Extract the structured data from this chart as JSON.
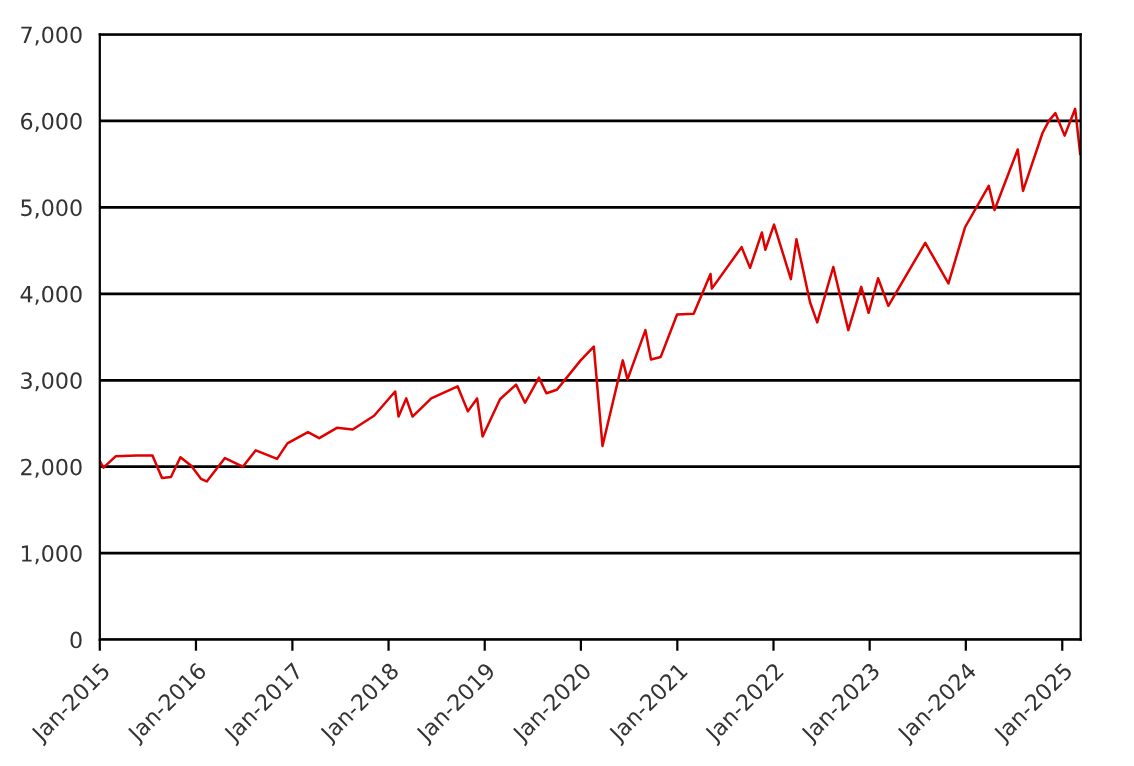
{
  "chart_data": {
    "type": "line",
    "line_style": "solid",
    "marker": "none",
    "grid": "y",
    "xlim": [
      "2015-01-01",
      "2025-03-12"
    ],
    "xticks": [
      {
        "value": "2015-01-01",
        "label": "Jan-2015"
      },
      {
        "value": "2016-01-01",
        "label": "Jan-2016"
      },
      {
        "value": "2017-01-01",
        "label": "Jan-2017"
      },
      {
        "value": "2018-01-01",
        "label": "Jan-2018"
      },
      {
        "value": "2019-01-01",
        "label": "Jan-2019"
      },
      {
        "value": "2020-01-01",
        "label": "Jan-2020"
      },
      {
        "value": "2021-01-01",
        "label": "Jan-2021"
      },
      {
        "value": "2022-01-01",
        "label": "Jan-2022"
      },
      {
        "value": "2023-01-01",
        "label": "Jan-2023"
      },
      {
        "value": "2024-01-01",
        "label": "Jan-2024"
      },
      {
        "value": "2025-01-01",
        "label": "Jan-2025"
      }
    ],
    "ylim": [
      0,
      7000
    ],
    "yticks": [
      {
        "value": 0,
        "label": "0"
      },
      {
        "value": 1000,
        "label": "1,000"
      },
      {
        "value": 2000,
        "label": "2,000"
      },
      {
        "value": 3000,
        "label": "3,000"
      },
      {
        "value": 4000,
        "label": "4,000"
      },
      {
        "value": 5000,
        "label": "5,000"
      },
      {
        "value": 6000,
        "label": "6,000"
      },
      {
        "value": 7000,
        "label": "7,000"
      }
    ],
    "series": [
      {
        "color": "#e00000",
        "x": [
          "2015-01-02",
          "2015-01-15",
          "2015-03-02",
          "2015-05-21",
          "2015-07-20",
          "2015-08-25",
          "2015-09-28",
          "2015-11-03",
          "2015-12-14",
          "2016-01-20",
          "2016-02-11",
          "2016-04-20",
          "2016-06-27",
          "2016-08-15",
          "2016-11-04",
          "2016-12-13",
          "2017-03-01",
          "2017-04-13",
          "2017-06-19",
          "2017-08-18",
          "2017-11-07",
          "2018-01-26",
          "2018-02-08",
          "2018-03-09",
          "2018-04-02",
          "2018-06-12",
          "2018-09-20",
          "2018-10-29",
          "2018-12-03",
          "2018-12-24",
          "2019-02-28",
          "2019-04-30",
          "2019-06-03",
          "2019-07-26",
          "2019-08-23",
          "2019-10-02",
          "2019-12-31",
          "2020-02-19",
          "2020-03-23",
          "2020-06-08",
          "2020-06-26",
          "2020-09-02",
          "2020-09-23",
          "2020-10-30",
          "2020-12-31",
          "2021-03-04",
          "2021-05-07",
          "2021-05-12",
          "2021-09-02",
          "2021-10-04",
          "2021-11-18",
          "2021-12-01",
          "2022-01-03",
          "2022-03-08",
          "2022-03-29",
          "2022-05-20",
          "2022-06-16",
          "2022-08-16",
          "2022-10-12",
          "2022-11-30",
          "2022-12-28",
          "2023-02-02",
          "2023-03-13",
          "2023-07-31",
          "2023-10-27",
          "2023-12-29",
          "2024-03-28",
          "2024-04-19",
          "2024-07-16",
          "2024-08-05",
          "2024-10-18",
          "2024-11-11",
          "2024-12-06",
          "2025-01-10",
          "2025-02-19",
          "2025-03-10"
        ],
        "values": [
          2060,
          1990,
          2120,
          2130,
          2130,
          1870,
          1880,
          2110,
          2010,
          1860,
          1830,
          2100,
          2000,
          2190,
          2090,
          2270,
          2400,
          2330,
          2450,
          2430,
          2590,
          2870,
          2580,
          2790,
          2580,
          2790,
          2930,
          2640,
          2790,
          2350,
          2780,
          2950,
          2740,
          3030,
          2850,
          2890,
          3230,
          3390,
          2240,
          3230,
          3010,
          3580,
          3240,
          3270,
          3760,
          3770,
          4230,
          4060,
          4540,
          4300,
          4710,
          4510,
          4800,
          4170,
          4630,
          3900,
          3670,
          4310,
          3580,
          4080,
          3780,
          4180,
          3860,
          4590,
          4120,
          4770,
          5250,
          4970,
          5670,
          5190,
          5860,
          6000,
          6090,
          5830,
          6140,
          5620
        ]
      }
    ]
  }
}
